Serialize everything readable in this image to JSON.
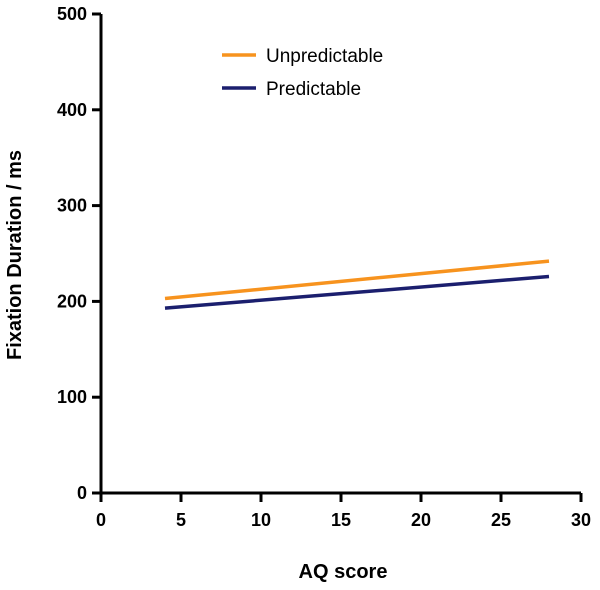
{
  "chart_data": {
    "type": "line",
    "xlabel": "AQ score",
    "ylabel": "Fixation Duration / ms",
    "xlim": [
      0,
      30
    ],
    "ylim": [
      0,
      500
    ],
    "x_ticks": [
      0,
      5,
      10,
      15,
      20,
      25,
      30
    ],
    "y_ticks": [
      0,
      100,
      200,
      300,
      400,
      500
    ],
    "grid": false,
    "legend_position": "top-center",
    "series": [
      {
        "name": "Unpredictable",
        "color": "#f7931e",
        "x": [
          4,
          28
        ],
        "y": [
          203,
          242
        ]
      },
      {
        "name": "Predictable",
        "color": "#1b1f6e",
        "x": [
          4,
          28
        ],
        "y": [
          193,
          226
        ]
      }
    ]
  }
}
